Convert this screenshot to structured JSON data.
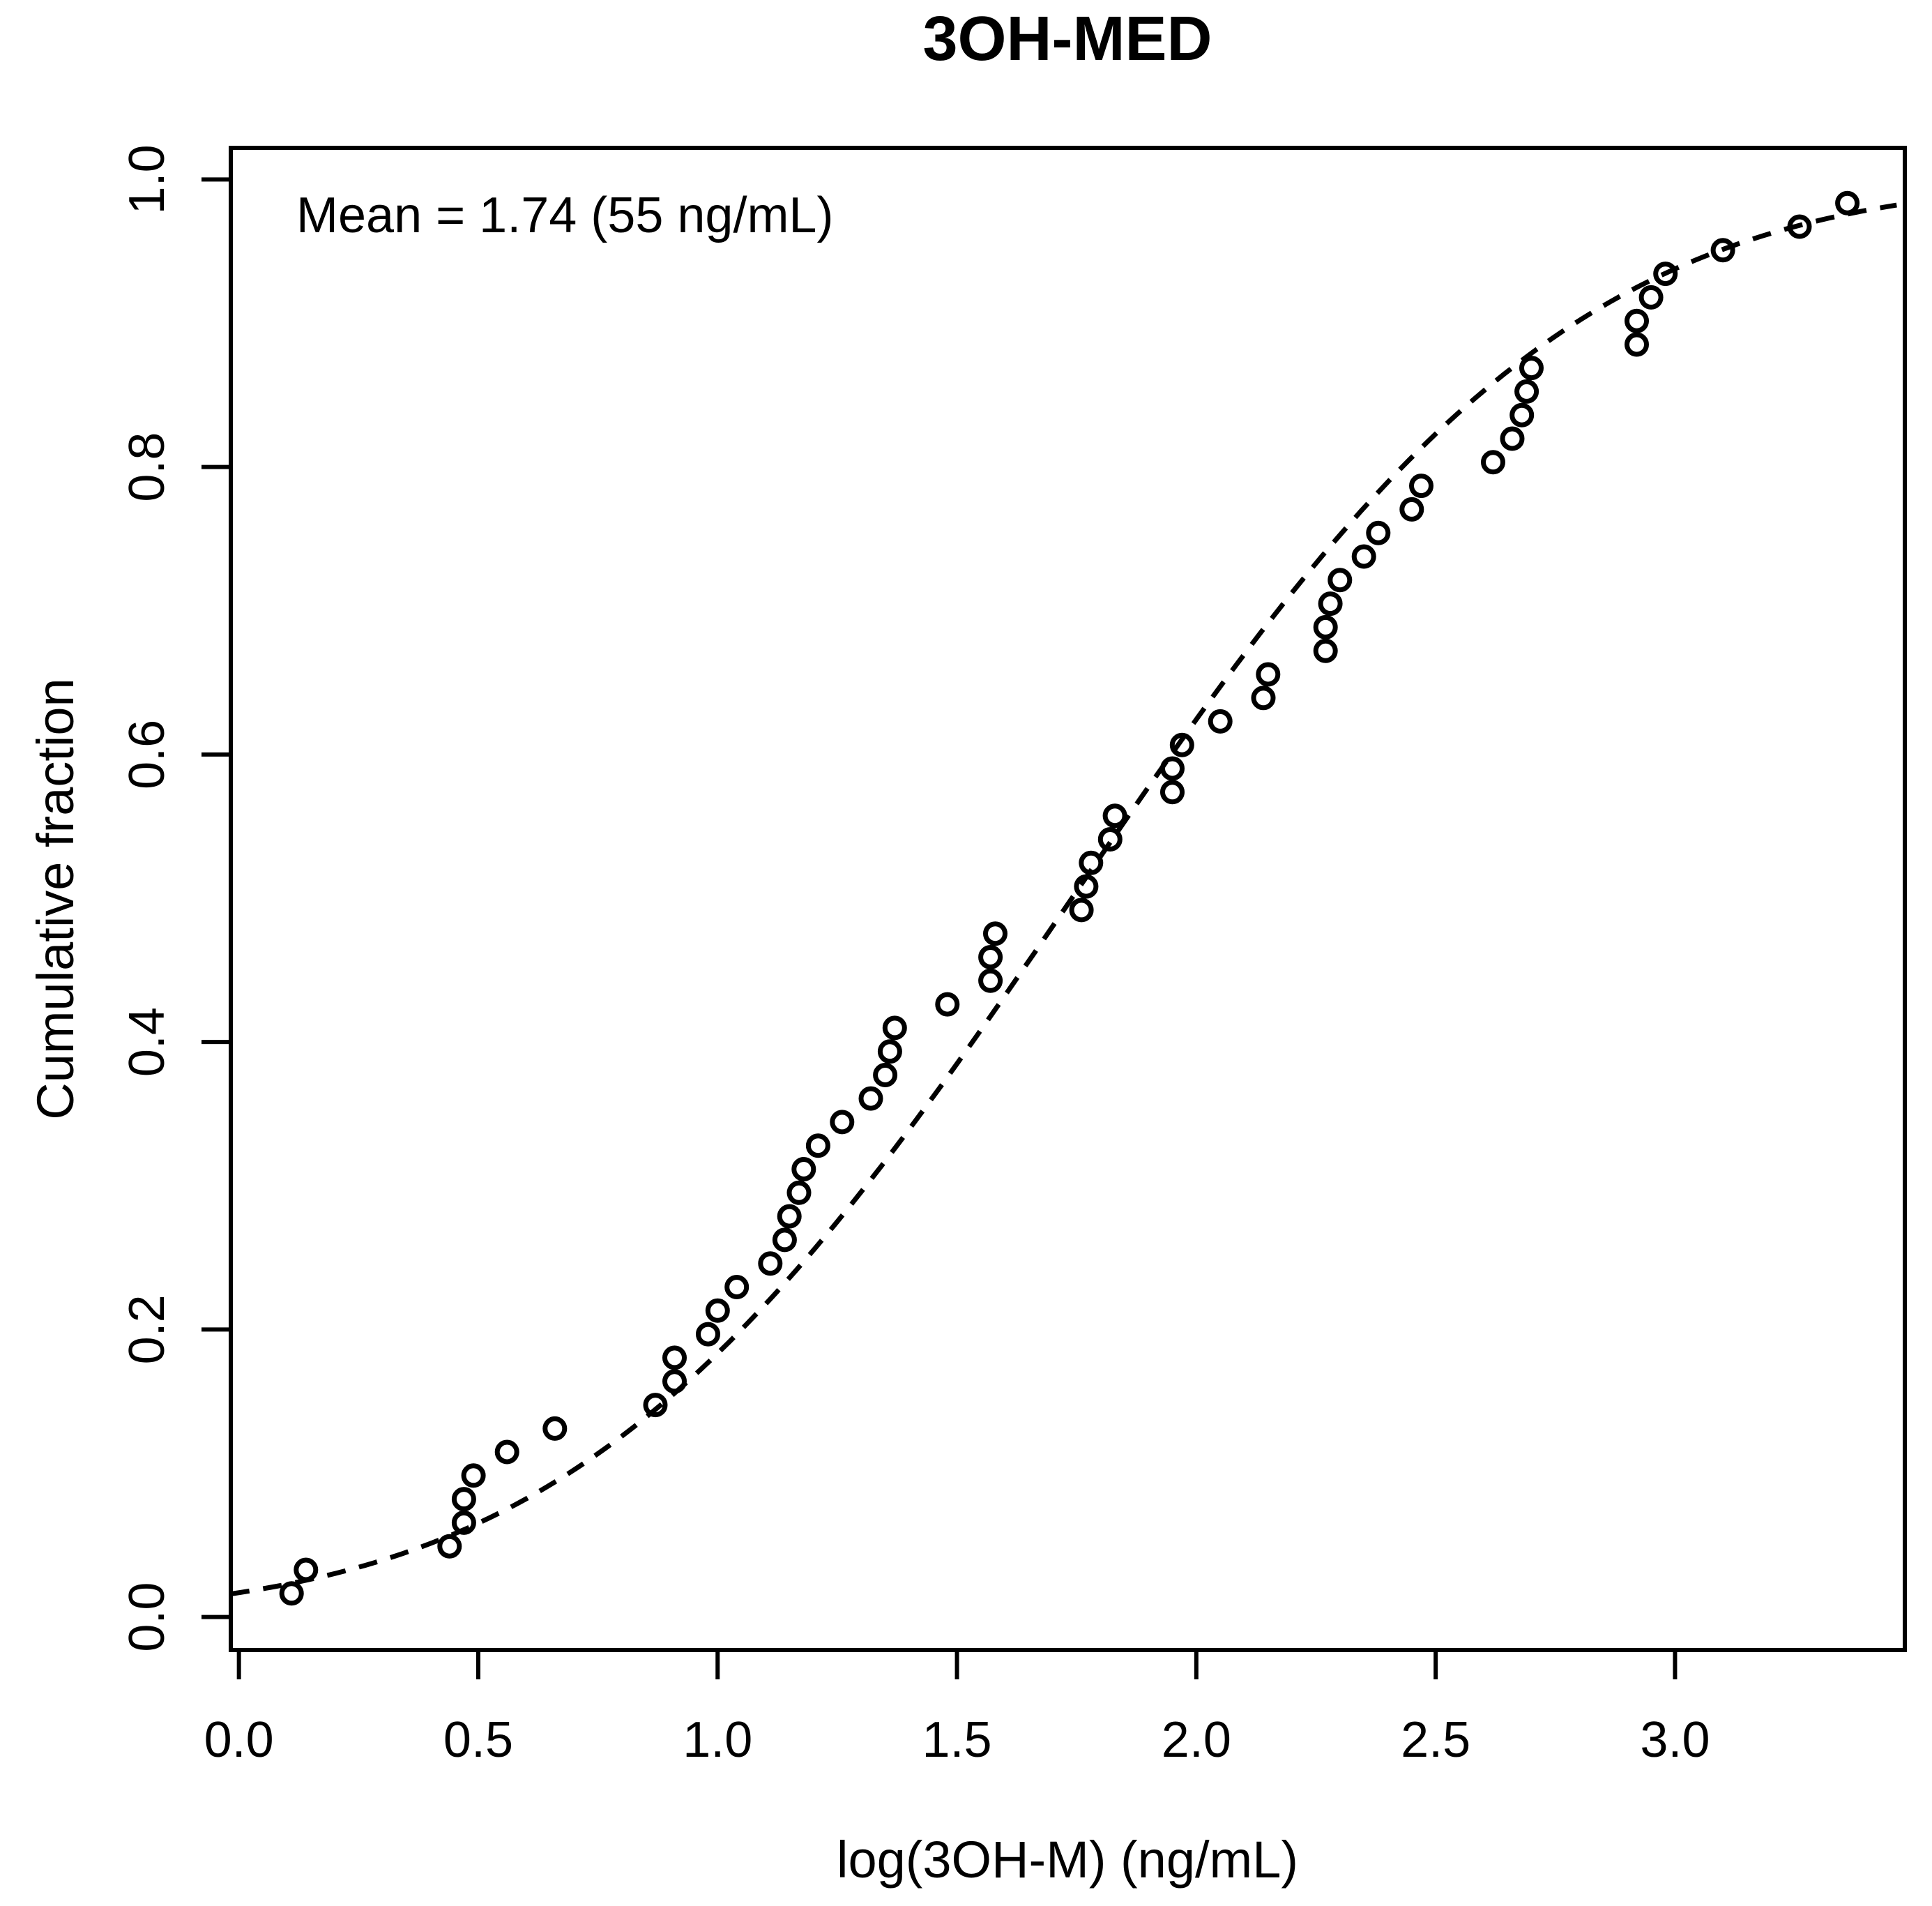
{
  "chart_data": {
    "type": "scatter",
    "title": "3OH-MED",
    "annotation": "Mean = 1.74 (55 ng/mL)",
    "xlabel": "log(3OH-M) (ng/mL)",
    "ylabel": "Cumulative fraction",
    "x_ticks": [
      0.0,
      0.5,
      1.0,
      1.5,
      2.0,
      2.5,
      3.0
    ],
    "x_tick_labels": [
      "0.0",
      "0.5",
      "1.0",
      "1.5",
      "2.0",
      "2.5",
      "3.0"
    ],
    "y_ticks": [
      0.0,
      0.2,
      0.4,
      0.6,
      0.8,
      1.0
    ],
    "y_tick_labels": [
      "0.0",
      "0.2",
      "0.4",
      "0.6",
      "0.8",
      "1.0"
    ],
    "xlim": [
      -0.017,
      3.48
    ],
    "ylim": [
      -0.023,
      1.022
    ],
    "grid": false,
    "marker": "open-circle",
    "n_points": 60,
    "points": {
      "x": [
        0.11,
        0.14,
        0.44,
        0.47,
        0.47,
        0.49,
        0.56,
        0.66,
        0.87,
        0.91,
        0.91,
        0.98,
        1.0,
        1.04,
        1.11,
        1.14,
        1.15,
        1.17,
        1.18,
        1.21,
        1.26,
        1.32,
        1.35,
        1.36,
        1.37,
        1.48,
        1.57,
        1.57,
        1.58,
        1.76,
        1.77,
        1.78,
        1.82,
        1.83,
        1.95,
        1.95,
        1.97,
        2.05,
        2.14,
        2.15,
        2.27,
        2.27,
        2.28,
        2.3,
        2.35,
        2.38,
        2.45,
        2.47,
        2.62,
        2.66,
        2.68,
        2.69,
        2.7,
        2.92,
        2.92,
        2.95,
        2.98,
        3.1,
        3.26,
        3.36
      ],
      "y": [
        0.0164,
        0.0328,
        0.0492,
        0.0656,
        0.082,
        0.0984,
        0.1148,
        0.1311,
        0.1475,
        0.1639,
        0.1803,
        0.1967,
        0.2131,
        0.2295,
        0.2459,
        0.2623,
        0.2787,
        0.2951,
        0.3115,
        0.3279,
        0.3443,
        0.3607,
        0.377,
        0.3934,
        0.4098,
        0.4262,
        0.4426,
        0.459,
        0.4754,
        0.4918,
        0.5082,
        0.5246,
        0.541,
        0.5574,
        0.5738,
        0.5902,
        0.6066,
        0.623,
        0.6393,
        0.6557,
        0.6721,
        0.6885,
        0.7049,
        0.7213,
        0.7377,
        0.7541,
        0.7705,
        0.7869,
        0.8033,
        0.8197,
        0.8361,
        0.8525,
        0.8689,
        0.8852,
        0.9016,
        0.918,
        0.9344,
        0.9508,
        0.9672,
        0.9836
      ]
    },
    "fitted_curve": {
      "type": "normal_cdf",
      "mean": 1.74,
      "sd": 0.82,
      "style": "dashed"
    },
    "colors": {
      "foreground": "#000000",
      "background": "#ffffff"
    }
  }
}
